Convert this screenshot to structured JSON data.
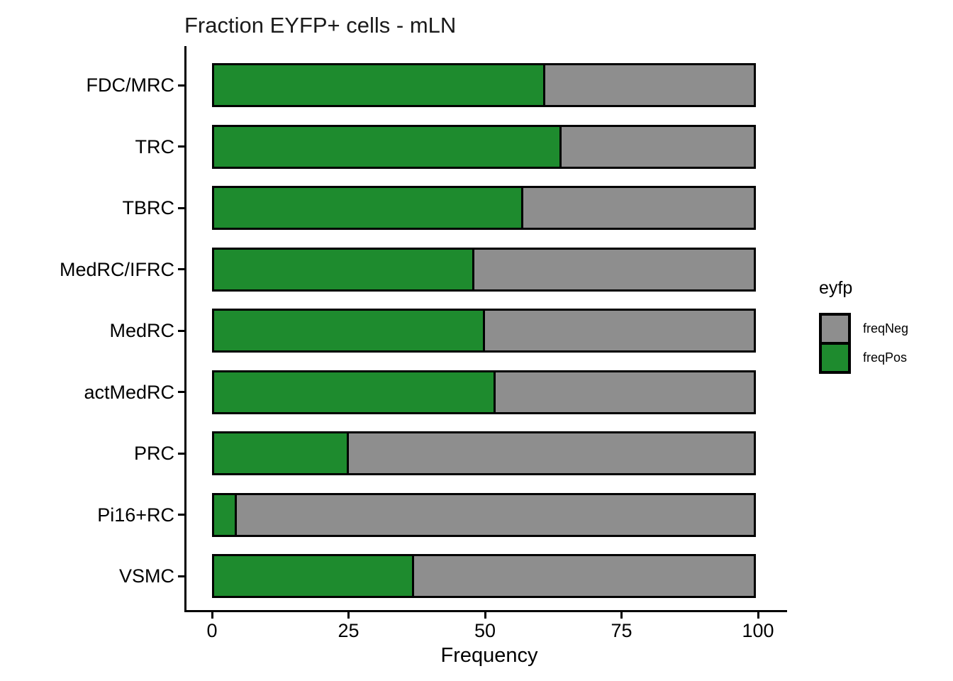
{
  "title": "Fraction EYFP+ cells - mLN",
  "chart_data": {
    "type": "bar",
    "orientation": "horizontal",
    "stacked": true,
    "title": "Fraction EYFP+ cells - mLN",
    "categories": [
      "FDC/MRC",
      "TRC",
      "TBRC",
      "MedRC/IFRC",
      "MedRC",
      "actMedRC",
      "PRC",
      "Pi16+RC",
      "VSMC"
    ],
    "series": [
      {
        "name": "freqPos",
        "color": "#1e8b2e",
        "values": [
          61,
          64,
          57,
          48,
          50,
          52,
          25,
          4.5,
          37
        ]
      },
      {
        "name": "freqNeg",
        "color": "#8e8e8e",
        "values": [
          39,
          36,
          43,
          52,
          50,
          48,
          75,
          95.5,
          63
        ]
      }
    ],
    "xlabel": "Frequency",
    "ylabel": "",
    "xlim": [
      0,
      100
    ],
    "x_ticks": [
      "0",
      "25",
      "50",
      "75",
      "100"
    ],
    "x_tick_values": [
      0,
      25,
      50,
      75,
      100
    ],
    "grid": false,
    "legend": {
      "title": "eyfp",
      "position": "right",
      "items": [
        {
          "label": "freqNeg",
          "color": "#8e8e8e"
        },
        {
          "label": "freqPos",
          "color": "#1e8b2e"
        }
      ]
    }
  },
  "colors": {
    "pos": "#1e8b2e",
    "neg": "#8e8e8e",
    "axis": "#000000",
    "background": "#ffffff"
  }
}
